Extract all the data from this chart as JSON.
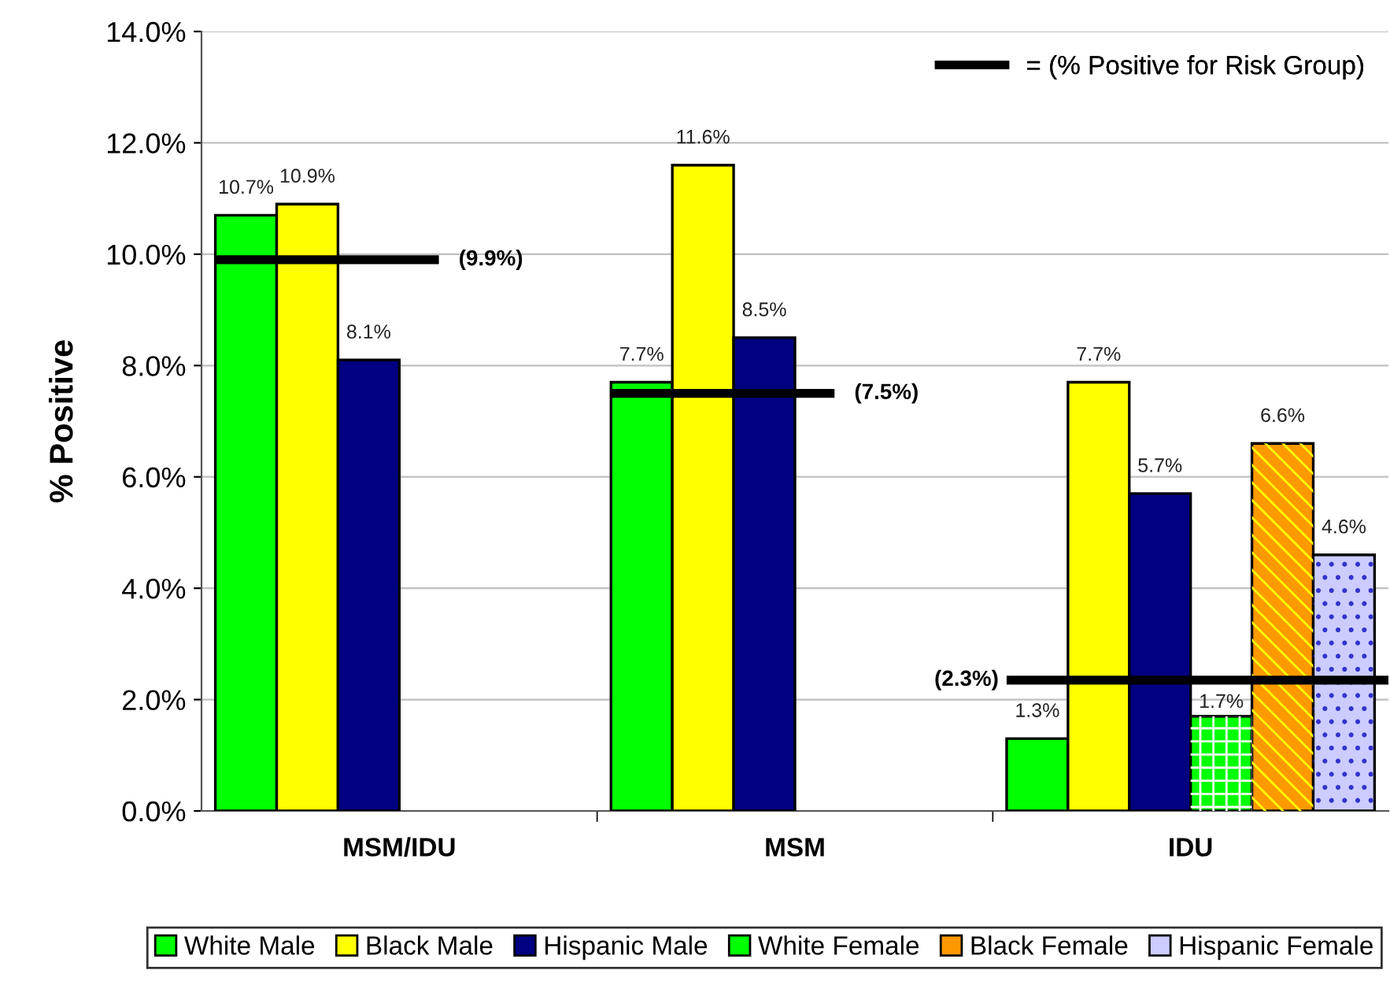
{
  "chart_data": {
    "type": "bar",
    "ylabel": "% Positive",
    "categories": [
      "MSM/IDU",
      "MSM",
      "IDU"
    ],
    "series": [
      {
        "name": "White Male",
        "color": "#00ff00",
        "values": [
          10.7,
          7.7,
          1.3
        ],
        "value_labels": [
          "10.7%",
          "7.7%",
          "1.3%"
        ]
      },
      {
        "name": "Black Male",
        "color": "#ffff00",
        "values": [
          10.9,
          11.6,
          7.7
        ],
        "value_labels": [
          "10.9%",
          "11.6%",
          "7.7%"
        ]
      },
      {
        "name": "Hispanic Male",
        "color": "#000080",
        "values": [
          8.1,
          8.5,
          5.7
        ],
        "value_labels": [
          "8.1%",
          "8.5%",
          "5.7%"
        ]
      },
      {
        "name": "White Female",
        "color": "#00ff00",
        "values": [
          null,
          null,
          1.7
        ],
        "value_labels": [
          null,
          null,
          "1.7%"
        ]
      },
      {
        "name": "Black Female",
        "color": "#ff9900",
        "values": [
          null,
          null,
          6.6
        ],
        "value_labels": [
          null,
          null,
          "6.6%"
        ]
      },
      {
        "name": "Hispanic Female",
        "color": "#ccccff",
        "values": [
          null,
          null,
          4.6
        ],
        "value_labels": [
          null,
          null,
          "4.6%"
        ]
      }
    ],
    "ylim": [
      0,
      14
    ],
    "yticks": [
      {
        "value": 0,
        "label": "0.0%"
      },
      {
        "value": 2,
        "label": "2.0%"
      },
      {
        "value": 4,
        "label": "4.0%"
      },
      {
        "value": 6,
        "label": "6.0%"
      },
      {
        "value": 8,
        "label": "8.0%"
      },
      {
        "value": 10,
        "label": "10.0%"
      },
      {
        "value": 12,
        "label": "12.0%"
      },
      {
        "value": 14,
        "label": "14.0%"
      }
    ],
    "ref_lines": [
      {
        "axis": "y",
        "value": 9.9,
        "label": "(9.9%)",
        "color": "#000000"
      },
      {
        "axis": "y",
        "value": 7.5,
        "label": "(7.5%)",
        "color": "#000000"
      },
      {
        "axis": "y",
        "value": 2.35,
        "label": "(2.3%)",
        "color": "#000000"
      }
    ],
    "annotations": [
      "= (% Positive for Risk Group)"
    ],
    "grid": "y",
    "legend": "bottom"
  }
}
